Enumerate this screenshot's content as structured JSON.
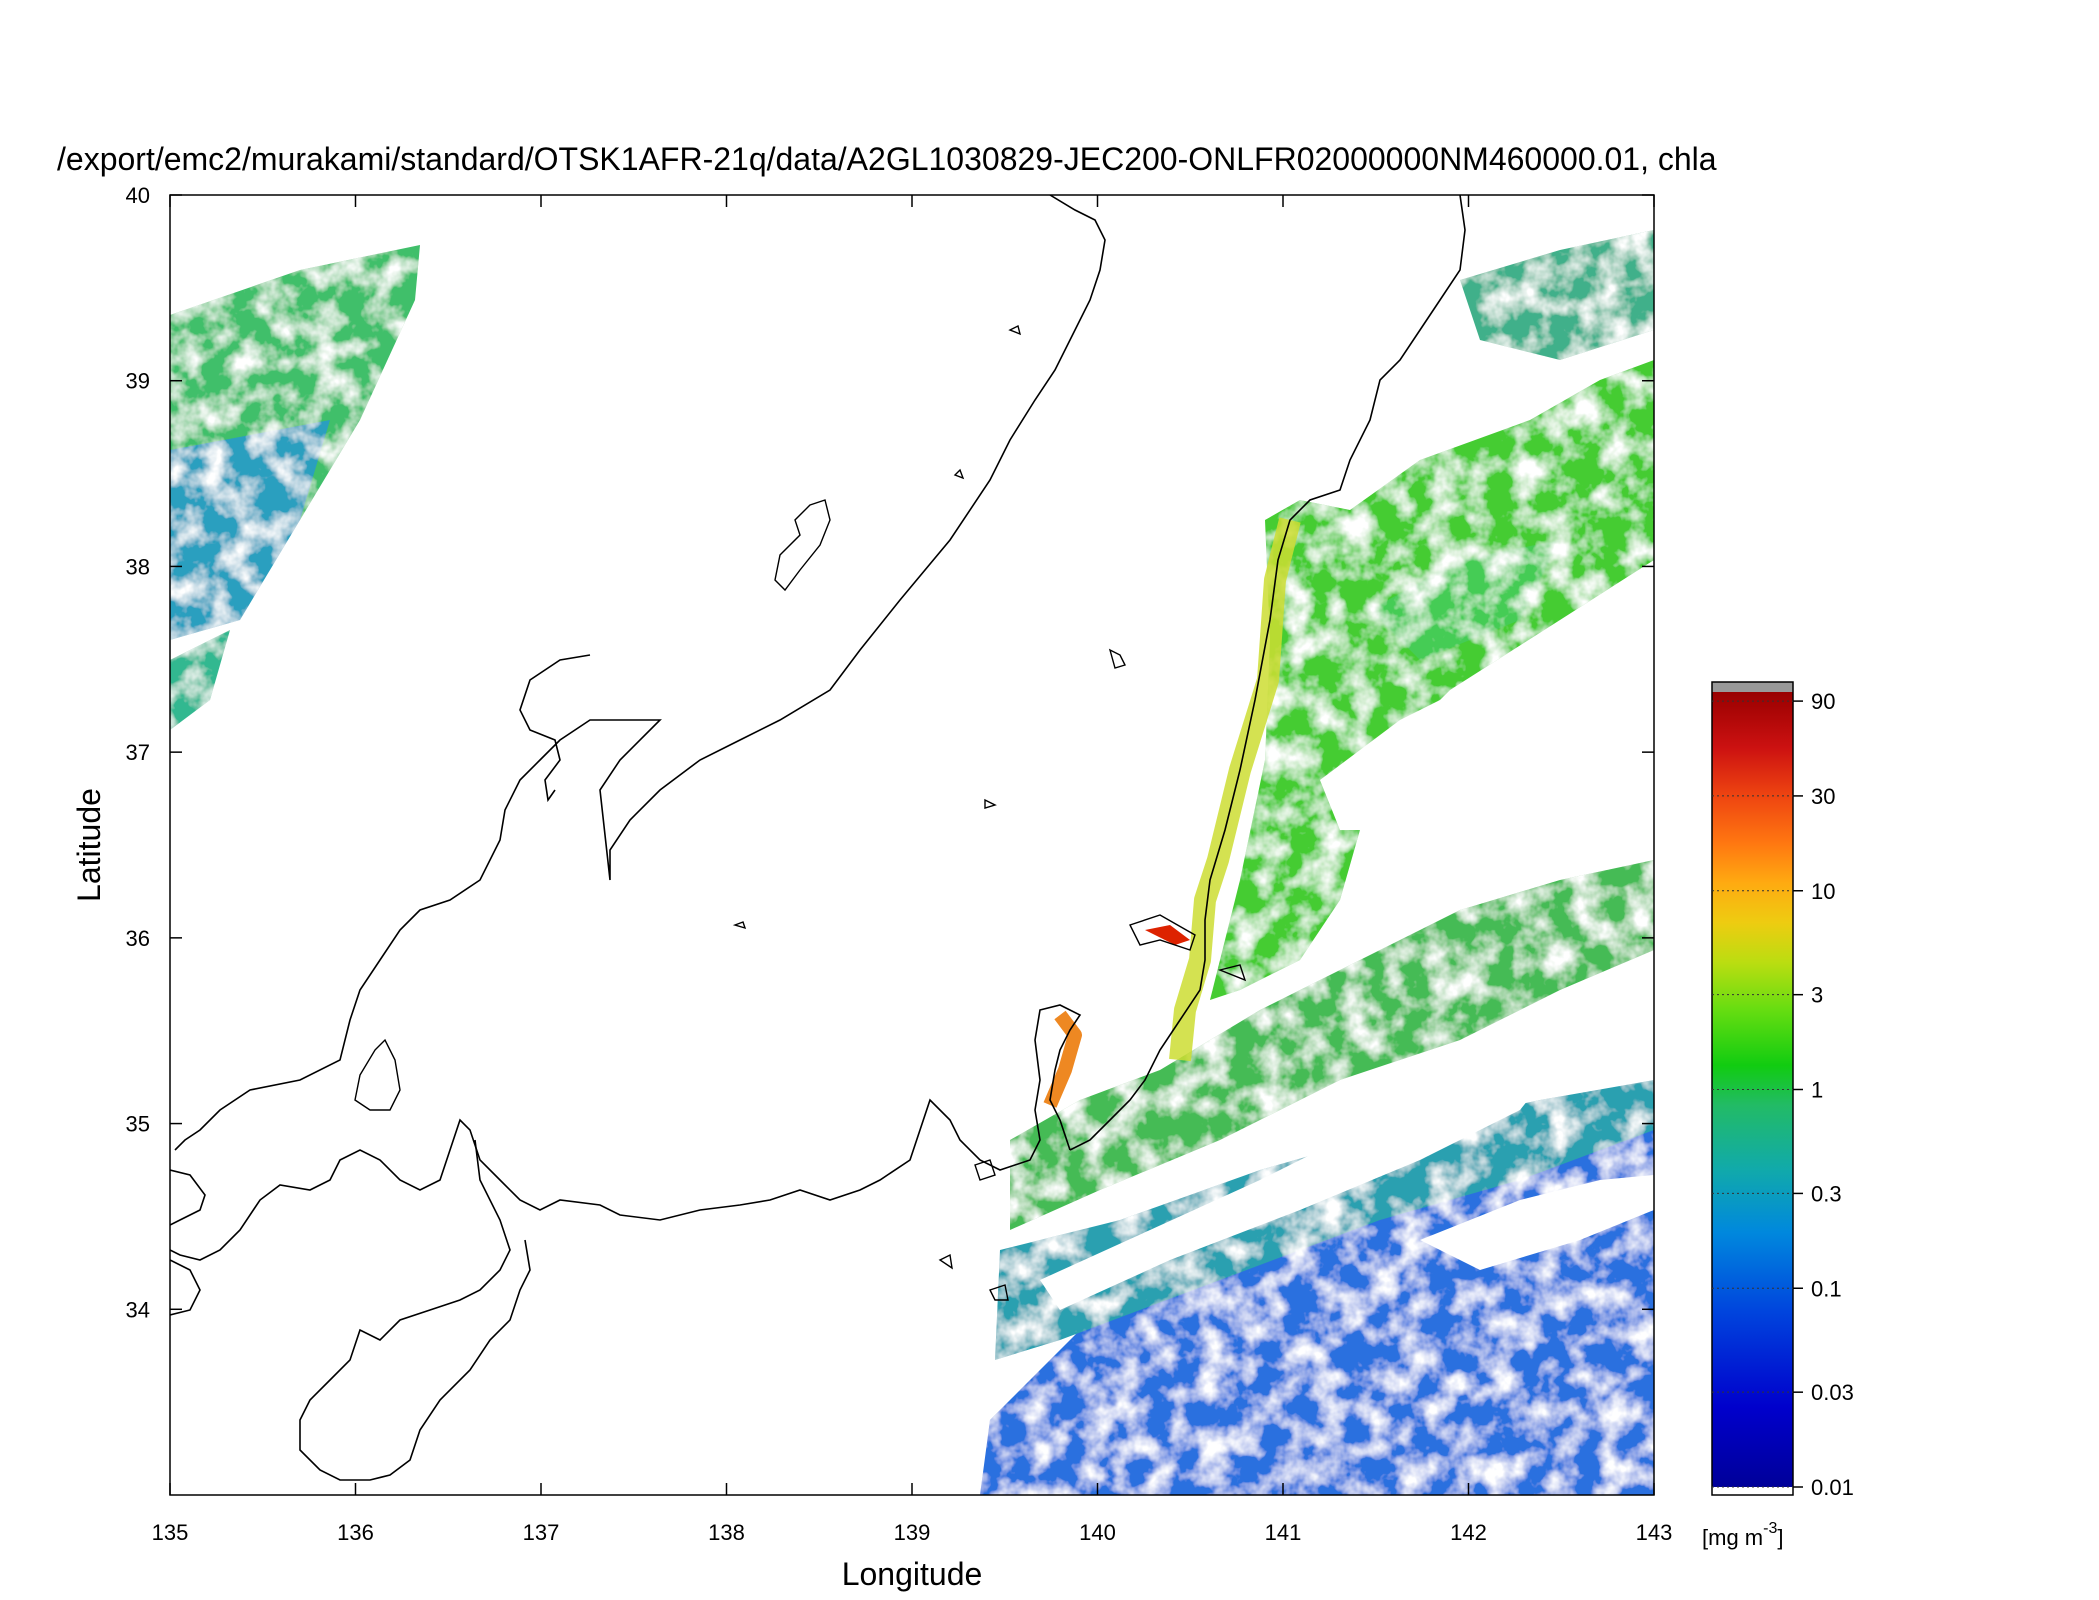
{
  "title": "/export/emc2/murakami/standard/OTSK1AFR-21q/data/A2GL1030829-JEC200-ONLFR02000000NM460000.01, chla",
  "axes": {
    "xlabel": "Longitude",
    "ylabel": "Latitude",
    "xlim": [
      135,
      143
    ],
    "ylim": [
      33,
      40
    ],
    "xticks": [
      "135",
      "136",
      "137",
      "138",
      "139",
      "140",
      "141",
      "142",
      "143"
    ],
    "yticks": [
      "34",
      "35",
      "36",
      "37",
      "38",
      "39",
      "40"
    ]
  },
  "colorbar": {
    "unit": "[mg m",
    "unit_exp": "-3",
    "unit_close": "]",
    "scale": "log",
    "range": [
      0.01,
      100
    ],
    "ticks": [
      {
        "label": "90",
        "value": 90
      },
      {
        "label": "30",
        "value": 30
      },
      {
        "label": "10",
        "value": 10
      },
      {
        "label": "3",
        "value": 3
      },
      {
        "label": "1",
        "value": 1
      },
      {
        "label": "0.3",
        "value": 0.3
      },
      {
        "label": "0.1",
        "value": 0.1
      },
      {
        "label": "0.03",
        "value": 0.03
      },
      {
        "label": "0.01",
        "value": 0.01
      }
    ],
    "colors": [
      "#0000aa",
      "#0033dd",
      "#1166dd",
      "#1199cc",
      "#22bb99",
      "#22cc22",
      "#99dd22",
      "#ddcc11",
      "#ff8822",
      "#ee3311",
      "#aa0000"
    ]
  }
}
